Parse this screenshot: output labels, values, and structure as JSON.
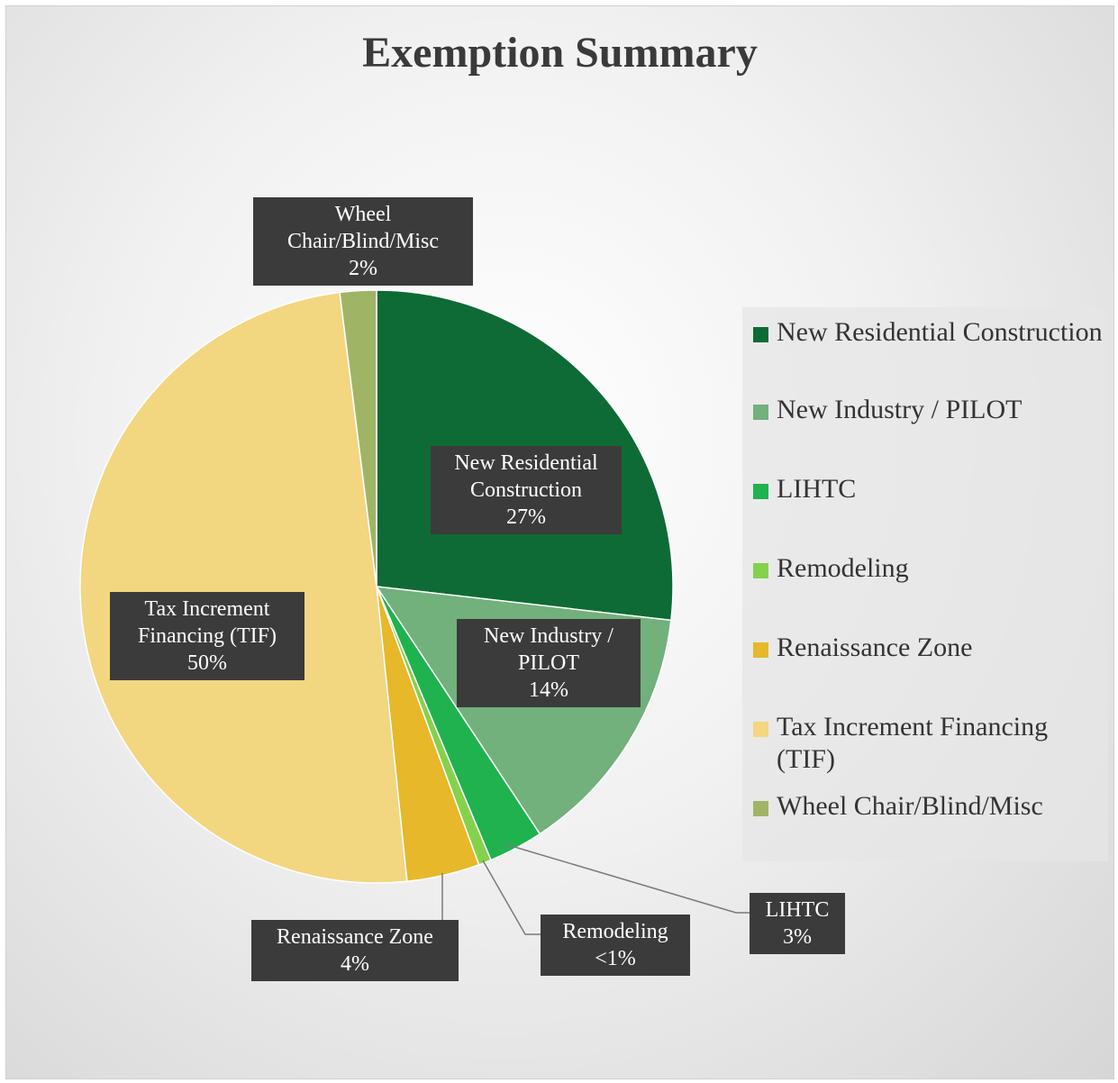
{
  "chart_data": {
    "type": "pie",
    "title": "Exemption Summary",
    "categories": [
      "New Residential Construction",
      "New Industry / PILOT",
      "LIHTC",
      "Remodeling",
      "Renaissance Zone",
      "Tax Increment Financing (TIF)",
      "Wheel Chair/Blind/Misc"
    ],
    "values": [
      27,
      14,
      3,
      0.7,
      4,
      50,
      2
    ],
    "value_labels": [
      "27%",
      "14%",
      "3%",
      "<1%",
      "4%",
      "50%",
      "2%"
    ],
    "colors": [
      "#0e6b35",
      "#72b07c",
      "#1fb24e",
      "#84d24c",
      "#e6b82a",
      "#f2d680",
      "#9fb565"
    ],
    "legend": "right"
  }
}
